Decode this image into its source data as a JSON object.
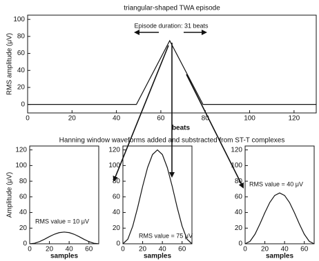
{
  "row_title": "Hanning window waveforms added and substracted from ST-T complexes",
  "chart_data": [
    {
      "type": "line",
      "title": "triangular-shaped TWA episode",
      "x_label": "beats",
      "y_label": "RMS amplitude (μV)",
      "annotation": "Episode duration: 31 beats",
      "x": [
        0,
        49,
        64,
        79,
        130
      ],
      "values": [
        0,
        0,
        75,
        0,
        0
      ],
      "xlim": [
        0,
        130
      ],
      "xticks": [
        0,
        20,
        40,
        60,
        80,
        100,
        120
      ],
      "ylim": [
        -10,
        105
      ],
      "yticks": [
        0,
        20,
        40,
        60,
        80,
        100
      ]
    },
    {
      "type": "line",
      "x_label": "samples",
      "y_label": "Amplitude (μV)",
      "annotation": "RMS value = 10 μV",
      "x": [
        0,
        5,
        10,
        15,
        20,
        25,
        30,
        35,
        40,
        45,
        50,
        55,
        60,
        65,
        70
      ],
      "values": [
        0,
        0.7,
        2.8,
        5.8,
        9.2,
        12.2,
        14.3,
        15,
        14.3,
        12.2,
        9.2,
        5.8,
        2.8,
        0.7,
        0
      ],
      "xlim": [
        0,
        70
      ],
      "xticks": [
        0,
        20,
        40,
        60
      ],
      "ylim": [
        0,
        125
      ],
      "yticks": [
        0,
        20,
        40,
        60,
        80,
        100,
        120
      ]
    },
    {
      "type": "line",
      "x_label": "samples",
      "annotation": "RMS value = 75 μV",
      "x": [
        0,
        5,
        10,
        15,
        20,
        25,
        30,
        35,
        40,
        45,
        50,
        55,
        60,
        65,
        70
      ],
      "values": [
        0,
        5.9,
        22.6,
        46.6,
        73.4,
        97.4,
        114.1,
        120,
        114.1,
        97.4,
        73.4,
        46.6,
        22.6,
        5.9,
        0
      ],
      "xlim": [
        0,
        70
      ],
      "xticks": [
        0,
        20,
        40,
        60
      ],
      "ylim": [
        0,
        125
      ],
      "yticks": [
        0,
        20,
        40,
        60,
        80,
        100,
        120
      ]
    },
    {
      "type": "line",
      "x_label": "samples",
      "annotation": "RMS value = 40 μV",
      "x": [
        0,
        5,
        10,
        15,
        20,
        25,
        30,
        35,
        40,
        45,
        50,
        55,
        60,
        65,
        70
      ],
      "values": [
        0,
        3.2,
        12.2,
        25.3,
        39.7,
        52.8,
        61.8,
        65,
        61.8,
        52.8,
        39.7,
        25.3,
        12.2,
        3.2,
        0
      ],
      "xlim": [
        0,
        70
      ],
      "xticks": [
        0,
        20,
        40,
        60
      ],
      "ylim": [
        0,
        125
      ],
      "yticks": [
        0,
        20,
        40,
        60,
        80,
        100,
        120
      ]
    }
  ]
}
